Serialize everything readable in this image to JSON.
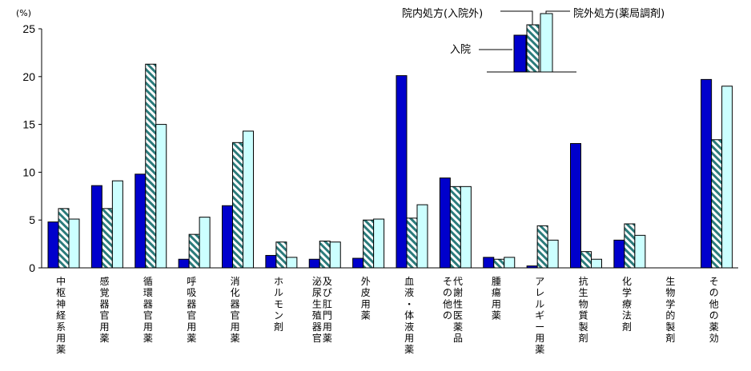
{
  "chart_data": {
    "type": "bar",
    "ylabel": "(%)",
    "ylim": [
      0,
      25
    ],
    "yticks": [
      0,
      5,
      10,
      15,
      20,
      25
    ],
    "categories": [
      "中枢神経系用薬",
      "感覚器官用薬",
      "循環器官用薬",
      "呼吸器官用薬",
      "消化器官用薬",
      "ホルモン剤",
      "泌尿生殖器官及び肛門用薬",
      "外皮用薬",
      "血液・体液用薬",
      "その他の代謝性医薬品",
      "腫瘍用薬",
      "アレルギー用薬",
      "抗生物質製剤",
      "化学療法剤",
      "生物学的製剤",
      "その他の薬効"
    ],
    "category_lines": [
      [
        "中枢神経系用薬"
      ],
      [
        "感覚器官用薬"
      ],
      [
        "循環器官用薬"
      ],
      [
        "呼吸器官用薬"
      ],
      [
        "消化器官用薬"
      ],
      [
        "ホルモン剤"
      ],
      [
        "泌尿生殖器官",
        "及び肛門用薬"
      ],
      [
        "外皮用薬"
      ],
      [
        "血液・体液用薬"
      ],
      [
        "その他の",
        "代謝性医薬品"
      ],
      [
        "腫瘍用薬"
      ],
      [
        "アレルギー用薬"
      ],
      [
        "抗生物質製剤"
      ],
      [
        "化学療法剤"
      ],
      [
        "生物学的製剤"
      ],
      [
        "その他の薬効"
      ]
    ],
    "series": [
      {
        "name": "入院",
        "color": "#0000cc",
        "pattern": "solid",
        "values": [
          4.8,
          8.6,
          9.8,
          0.9,
          6.5,
          1.3,
          0.9,
          1.0,
          20.1,
          9.4,
          1.1,
          0.2,
          13.0,
          2.9,
          0.0,
          19.7
        ]
      },
      {
        "name": "院内処方(入院外)",
        "color": "#2b7b7b",
        "pattern": "hatch",
        "values": [
          6.2,
          6.2,
          21.3,
          3.5,
          13.1,
          2.7,
          2.8,
          5.0,
          5.2,
          8.5,
          0.9,
          4.4,
          1.7,
          4.6,
          0.0,
          13.4
        ]
      },
      {
        "name": "院外処方(薬局調剤)",
        "color": "#ccffff",
        "pattern": "solid",
        "values": [
          5.1,
          9.1,
          15.0,
          5.3,
          14.3,
          1.1,
          2.7,
          5.1,
          6.6,
          8.5,
          1.1,
          2.9,
          0.9,
          3.4,
          0.0,
          19.0
        ]
      }
    ],
    "grid": false,
    "legend": "top-right"
  }
}
